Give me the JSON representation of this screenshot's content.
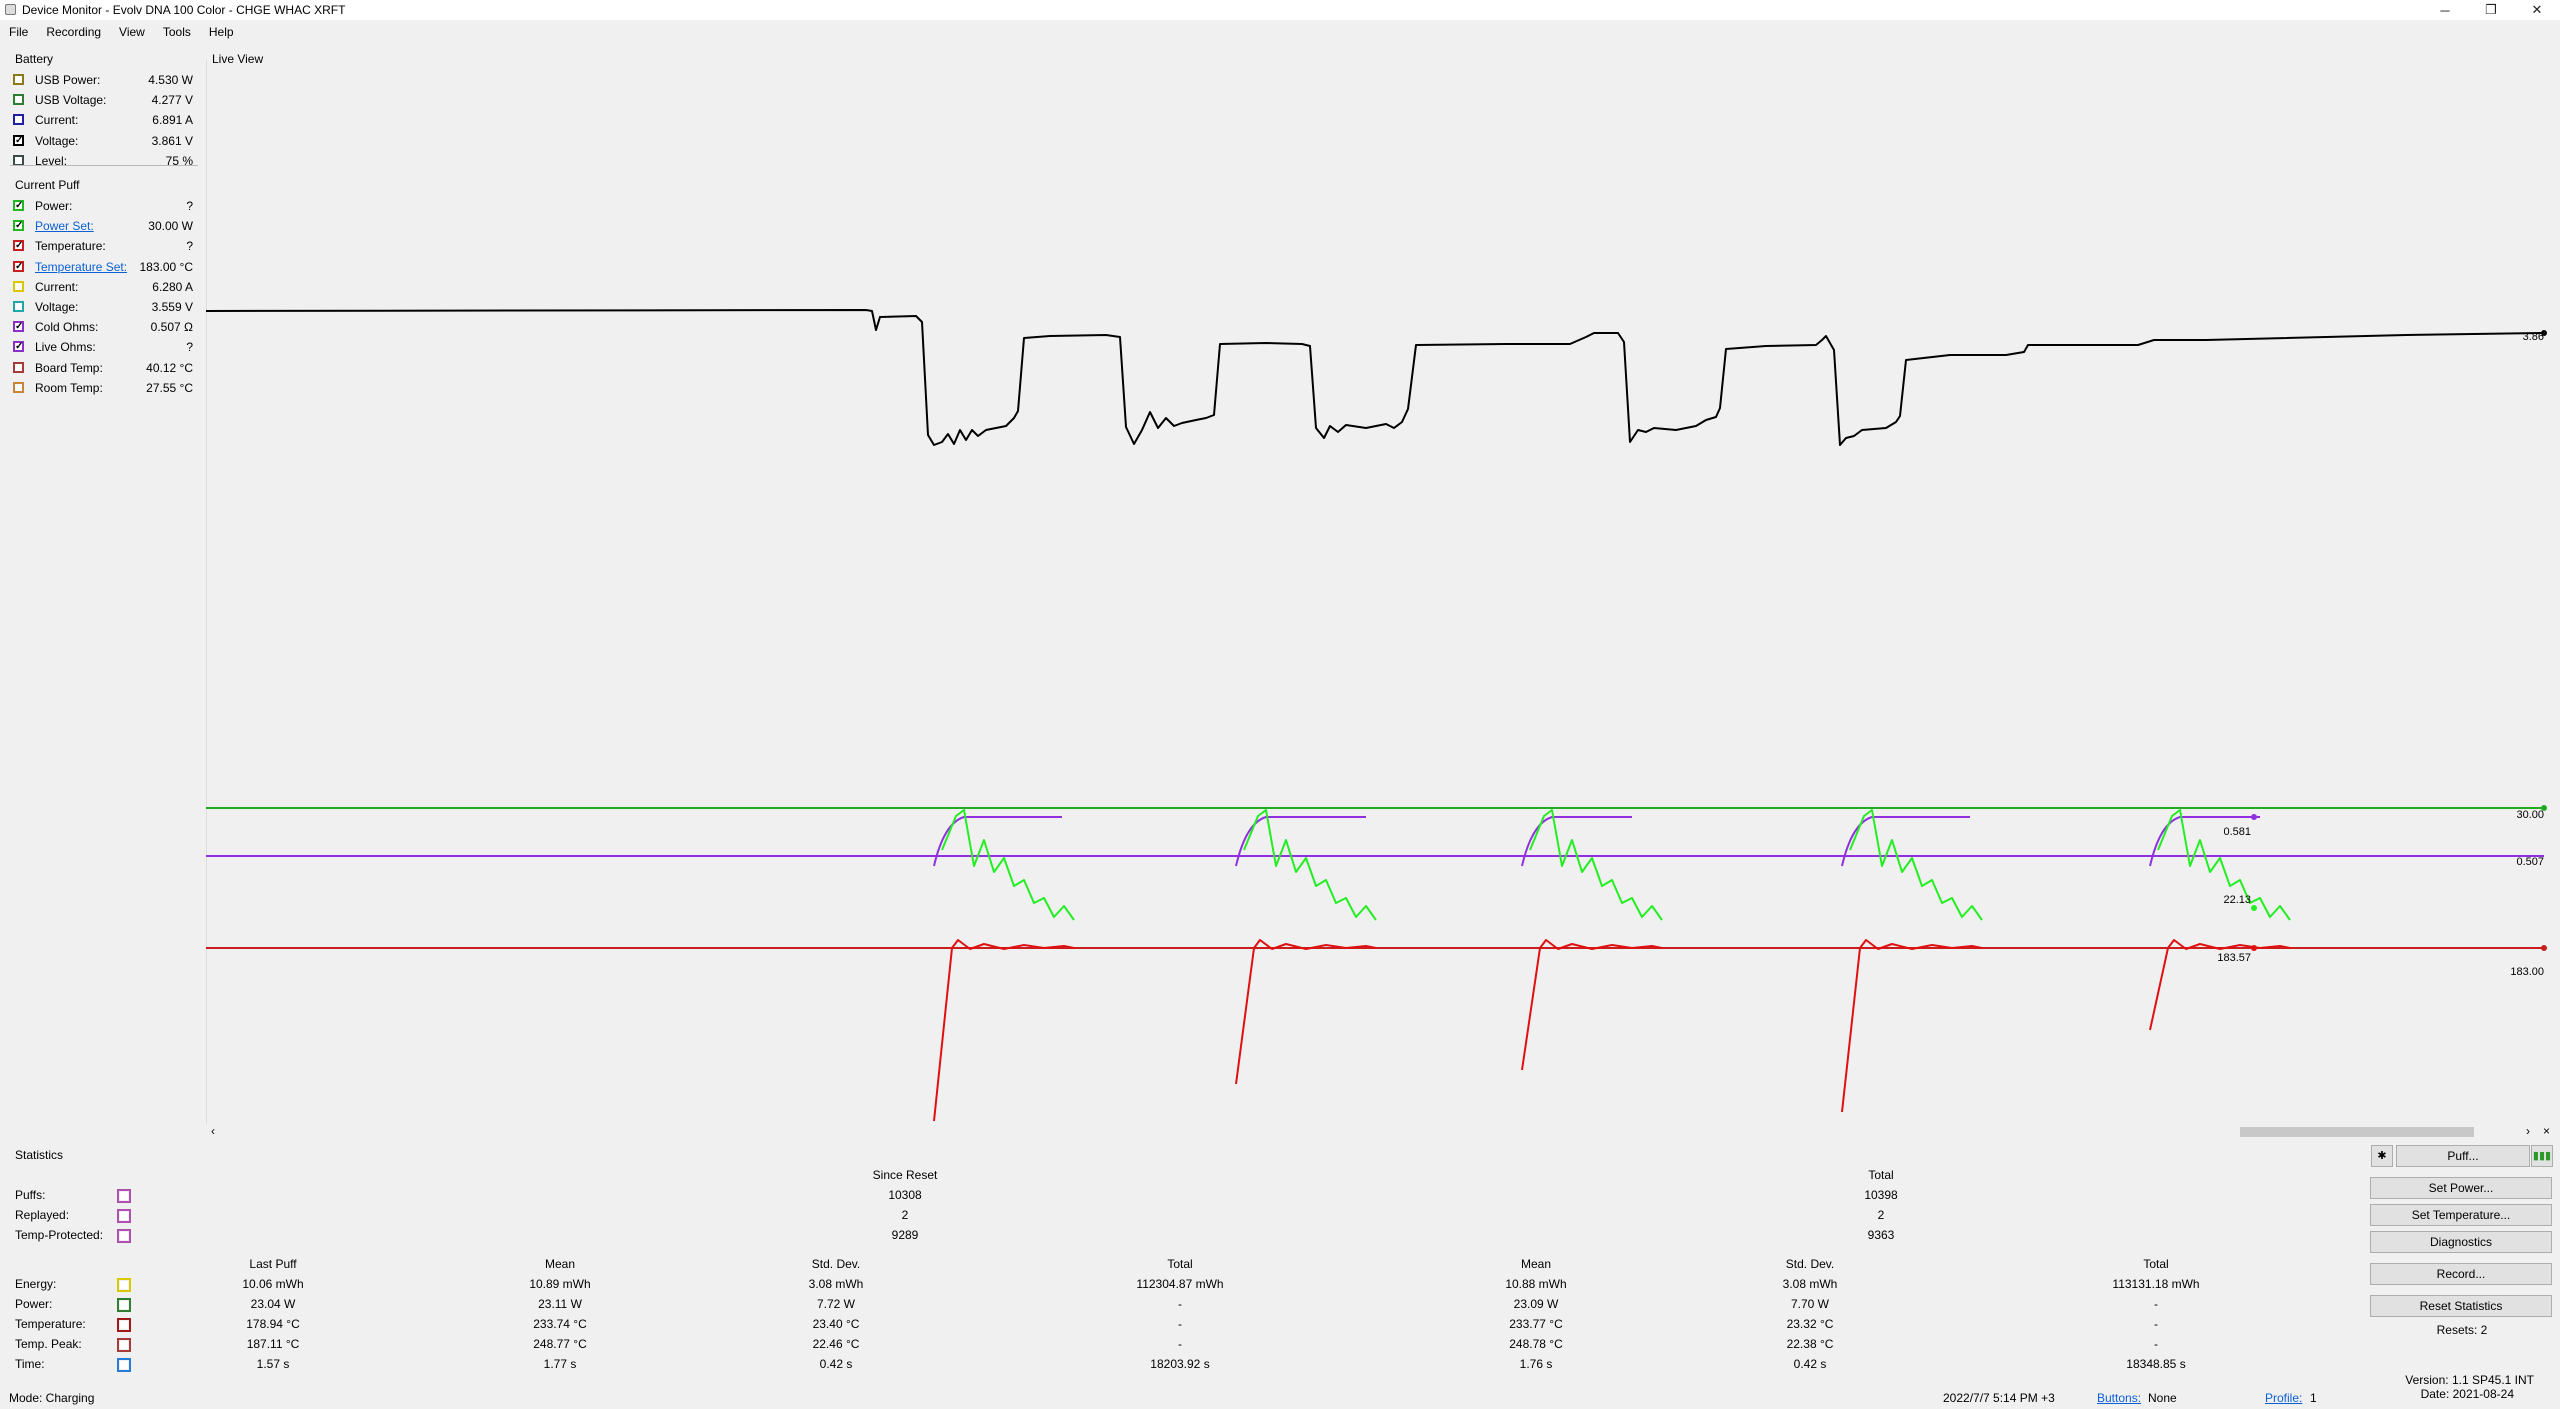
{
  "window": {
    "title": "Device Monitor - Evolv DNA 100 Color - CHGE WHAC XRFT",
    "minimize": "─",
    "maximize": "❐",
    "close": "✕"
  },
  "menu": [
    "File",
    "Recording",
    "View",
    "Tools",
    "Help"
  ],
  "battery": {
    "title": "Battery",
    "rows": [
      {
        "label": "USB Power:",
        "value": "4.530 W",
        "checked": false,
        "color": "#8a7a1a"
      },
      {
        "label": "USB Voltage:",
        "value": "4.277 V",
        "checked": false,
        "color": "#2e7d32"
      },
      {
        "label": "Current:",
        "value": "6.891 A",
        "checked": false,
        "color": "#1f1fa8"
      },
      {
        "label": "Voltage:",
        "value": "3.861 V",
        "checked": true,
        "color": "#000000"
      },
      {
        "label": "Level:",
        "value": "75 %",
        "checked": false,
        "color": "#3a4a48"
      }
    ]
  },
  "current_puff": {
    "title": "Current Puff",
    "rows": [
      {
        "label": "Power:",
        "value": "?",
        "checked": true,
        "color": "#22b722",
        "link": false
      },
      {
        "label": "Power Set:",
        "value": "30.00 W",
        "checked": true,
        "color": "#22b722",
        "link": true
      },
      {
        "label": "Temperature:",
        "value": "?",
        "checked": true,
        "color": "#c81e1e",
        "link": false
      },
      {
        "label": "Temperature Set:",
        "value": "183.00 °C",
        "checked": true,
        "color": "#c81e1e",
        "link": true
      },
      {
        "label": "Current:",
        "value": "6.280 A",
        "checked": false,
        "color": "#d8c800",
        "link": false
      },
      {
        "label": "Voltage:",
        "value": "3.559 V",
        "checked": false,
        "color": "#21a5a5",
        "link": false
      },
      {
        "label": "Cold Ohms:",
        "value": "0.507 Ω",
        "checked": true,
        "color": "#8a30c8",
        "link": false
      },
      {
        "label": "Live Ohms:",
        "value": "?",
        "checked": true,
        "color": "#8a30c8",
        "link": false
      },
      {
        "label": "Board Temp:",
        "value": "40.12 °C",
        "checked": false,
        "color": "#a63a3a",
        "link": false
      },
      {
        "label": "Room Temp:",
        "value": "27.55 °C",
        "checked": false,
        "color": "#c9863a",
        "link": false
      }
    ]
  },
  "live_view": {
    "title": "Live View",
    "labels": {
      "voltage_end": "3.86",
      "power_set": "30.00",
      "cold_ohms": "0.507",
      "temp_set": "183.00",
      "live_ohms_last": "0.581",
      "power_last": "22.13",
      "temp_last": "183.57"
    },
    "scroll": {
      "left_arrow": "‹",
      "right_arrow": "›",
      "close": "×"
    }
  },
  "statistics": {
    "title": "Statistics",
    "since_reset_header": "Since Reset",
    "total_header": "Total",
    "counts": [
      {
        "label": "Puffs:",
        "since_reset": "10308",
        "total": "10398",
        "color": "#b050b0"
      },
      {
        "label": "Replayed:",
        "since_reset": "2",
        "total": "2",
        "color": "#b050b0"
      },
      {
        "label": "Temp-Protected:",
        "since_reset": "9289",
        "total": "9363",
        "color": "#b050b0"
      }
    ],
    "columns": [
      "Last Puff",
      "Mean",
      "Std. Dev.",
      "Total",
      "Mean",
      "Std. Dev.",
      "Total"
    ],
    "rows": [
      {
        "label": "Energy:",
        "color": "#d8c800",
        "values": [
          "10.06 mWh",
          "10.89 mWh",
          "3.08 mWh",
          "112304.87 mWh",
          "10.88 mWh",
          "3.08 mWh",
          "113131.18 mWh"
        ]
      },
      {
        "label": "Power:",
        "color": "#2e7d32",
        "values": [
          "23.04 W",
          "23.11 W",
          "7.72 W",
          "-",
          "23.09 W",
          "7.70 W",
          "-"
        ]
      },
      {
        "label": "Temperature:",
        "color": "#a01818",
        "values": [
          "178.94 °C",
          "233.74 °C",
          "23.40 °C",
          "-",
          "233.77 °C",
          "23.32 °C",
          "-"
        ]
      },
      {
        "label": "Temp. Peak:",
        "color": "#a63a3a",
        "values": [
          "187.11 °C",
          "248.77 °C",
          "22.46 °C",
          "-",
          "248.78 °C",
          "22.38 °C",
          "-"
        ]
      },
      {
        "label": "Time:",
        "color": "#2a7ad8",
        "values": [
          "1.57 s",
          "1.77 s",
          "0.42 s",
          "18203.92 s",
          "1.76 s",
          "0.42 s",
          "18348.85 s"
        ]
      }
    ]
  },
  "buttons": {
    "puff": "Puff...",
    "set_power": "Set Power...",
    "set_temperature": "Set Temperature...",
    "diagnostics": "Diagnostics",
    "record": "Record...",
    "reset_statistics": "Reset Statistics",
    "resets": "Resets: 2",
    "settings_icon": "✱",
    "battery_icon": "▮▮▮"
  },
  "version": {
    "version": "Version: 1.1 SP45.1 INT",
    "date": "Date: 2021-08-24"
  },
  "status": {
    "mode": "Mode: Charging",
    "timestamp": "2022/7/7 5:14 PM +3",
    "buttons_label": "Buttons:",
    "buttons_value": "None",
    "profile_label": "Profile:",
    "profile_value": "1"
  },
  "series_colors": {
    "voltage": "#000000",
    "power": "#22ee22",
    "power_set": "#22aa22",
    "temperature": "#e01010",
    "temp_set": "#c81e1e",
    "ohms": "#9030e0"
  }
}
